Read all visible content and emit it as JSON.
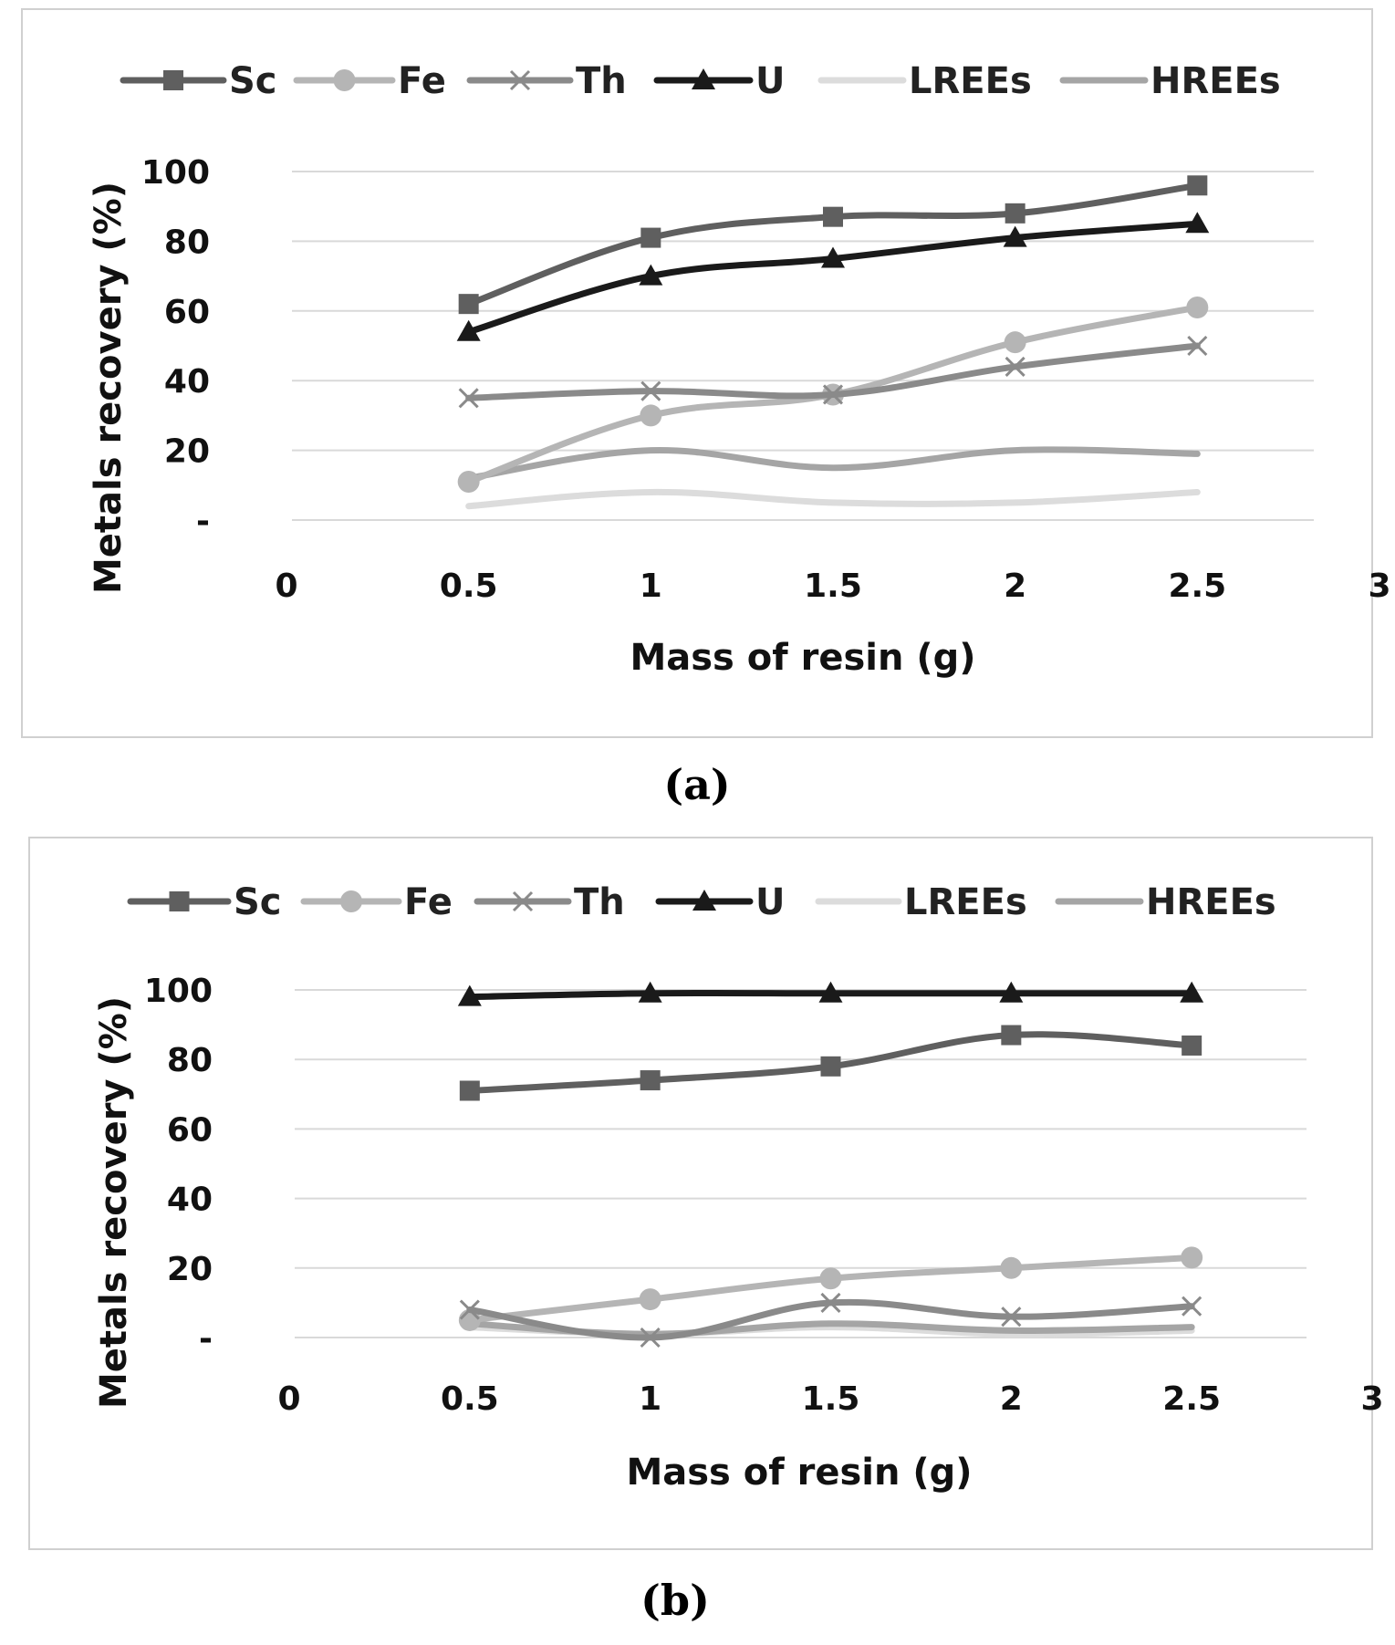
{
  "chart_data": [
    {
      "type": "line",
      "panel": "a",
      "caption": "(a)",
      "xlabel": "Mass of resin (g)",
      "ylabel": "Metals recovery (%)",
      "x_ticks": [
        "0",
        "0.5",
        "1",
        "1.5",
        "2",
        "2.5",
        "3"
      ],
      "y_ticks": [
        "-",
        "20",
        "40",
        "60",
        "80",
        "100"
      ],
      "xlim": [
        0,
        3
      ],
      "ylim": [
        0,
        100
      ],
      "grid": true,
      "legend_position": "top",
      "x": [
        0.5,
        1,
        1.5,
        2,
        2.5
      ],
      "series": [
        {
          "name": "Sc",
          "values": [
            62,
            81,
            87,
            88,
            96
          ],
          "color": "#5f5f5f",
          "marker": "square"
        },
        {
          "name": "Fe",
          "values": [
            11,
            30,
            36,
            51,
            61
          ],
          "color": "#b5b5b5",
          "marker": "circle"
        },
        {
          "name": "Th",
          "values": [
            35,
            37,
            36,
            44,
            50
          ],
          "color": "#8a8a8a",
          "marker": "x"
        },
        {
          "name": "U",
          "values": [
            54,
            70,
            75,
            81,
            85
          ],
          "color": "#1a1a1a",
          "marker": "triangle"
        },
        {
          "name": "LREEs",
          "values": [
            4,
            8,
            5,
            5,
            8
          ],
          "color": "#dcdcdc",
          "marker": "none"
        },
        {
          "name": "HREEs",
          "values": [
            12,
            20,
            15,
            20,
            19
          ],
          "color": "#a5a5a5",
          "marker": "none"
        }
      ]
    },
    {
      "type": "line",
      "panel": "b",
      "caption": "(b)",
      "xlabel": "Mass of resin (g)",
      "ylabel": "Metals recovery (%)",
      "x_ticks": [
        "0",
        "0.5",
        "1",
        "1.5",
        "2",
        "2.5",
        "3"
      ],
      "y_ticks": [
        "-",
        "20",
        "40",
        "60",
        "80",
        "100"
      ],
      "xlim": [
        0,
        3
      ],
      "ylim": [
        0,
        100
      ],
      "grid": true,
      "legend_position": "top",
      "x": [
        0.5,
        1,
        1.5,
        2,
        2.5
      ],
      "series": [
        {
          "name": "Sc",
          "values": [
            71,
            74,
            78,
            87,
            84
          ],
          "color": "#5f5f5f",
          "marker": "square"
        },
        {
          "name": "Fe",
          "values": [
            5,
            11,
            17,
            20,
            23
          ],
          "color": "#b5b5b5",
          "marker": "circle"
        },
        {
          "name": "Th",
          "values": [
            8,
            0,
            10,
            6,
            9
          ],
          "color": "#8a8a8a",
          "marker": "x"
        },
        {
          "name": "U",
          "values": [
            98,
            99,
            99,
            99,
            99
          ],
          "color": "#1a1a1a",
          "marker": "triangle"
        },
        {
          "name": "LREEs",
          "values": [
            3,
            1,
            3,
            1,
            2
          ],
          "color": "#dcdcdc",
          "marker": "none"
        },
        {
          "name": "HREEs",
          "values": [
            4,
            1,
            4,
            2,
            3
          ],
          "color": "#a5a5a5",
          "marker": "none"
        }
      ]
    }
  ]
}
